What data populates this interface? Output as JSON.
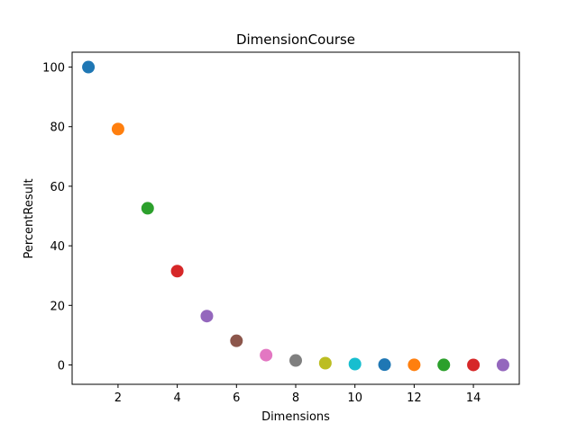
{
  "chart_data": {
    "type": "scatter",
    "title": "DimensionCourse",
    "xlabel": "Dimensions",
    "ylabel": "PercentResult",
    "xlim": [
      0.45,
      15.55
    ],
    "ylim": [
      -6.5,
      105
    ],
    "xticks": [
      2,
      4,
      6,
      8,
      10,
      12,
      14
    ],
    "yticks": [
      0,
      20,
      40,
      60,
      80,
      100
    ],
    "grid": false,
    "legend": "none",
    "points": [
      {
        "x": 1,
        "y": 100,
        "color": "#1f77b4"
      },
      {
        "x": 2,
        "y": 79.2,
        "color": "#ff7f0e"
      },
      {
        "x": 3,
        "y": 52.6,
        "color": "#2ca02c"
      },
      {
        "x": 4,
        "y": 31.5,
        "color": "#d62728"
      },
      {
        "x": 5,
        "y": 16.4,
        "color": "#9467bd"
      },
      {
        "x": 6,
        "y": 8.1,
        "color": "#8c564b"
      },
      {
        "x": 7,
        "y": 3.3,
        "color": "#e377c2"
      },
      {
        "x": 8,
        "y": 1.5,
        "color": "#7f7f7f"
      },
      {
        "x": 9,
        "y": 0.6,
        "color": "#bcbd22"
      },
      {
        "x": 10,
        "y": 0.3,
        "color": "#17becf"
      },
      {
        "x": 11,
        "y": 0.1,
        "color": "#1f77b4"
      },
      {
        "x": 12,
        "y": 0.05,
        "color": "#ff7f0e"
      },
      {
        "x": 13,
        "y": 0.02,
        "color": "#2ca02c"
      },
      {
        "x": 14,
        "y": 0.01,
        "color": "#d62728"
      },
      {
        "x": 15,
        "y": 0.0,
        "color": "#9467bd"
      }
    ]
  }
}
